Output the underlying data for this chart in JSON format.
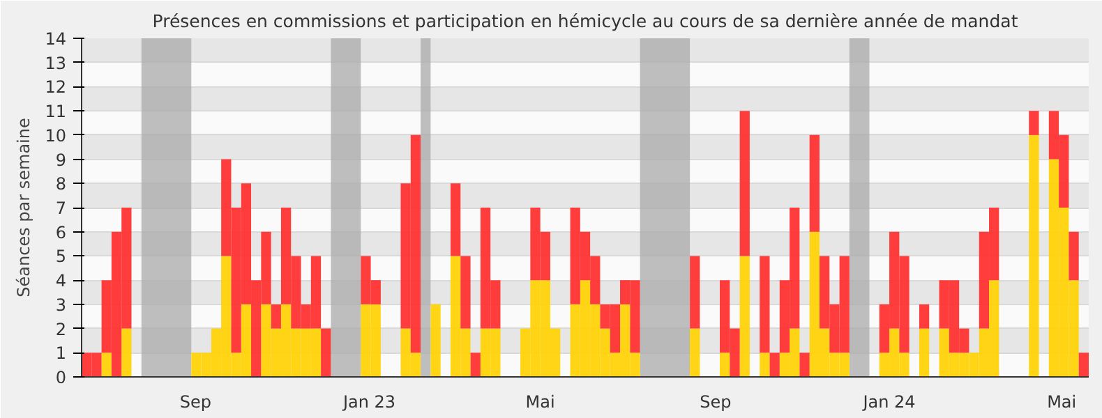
{
  "chart_data": {
    "type": "bar",
    "stacked": true,
    "title": "Présences en commissions et participation en hémicycle au cours de sa dernière année de mandat",
    "ylabel": "Séances par semaine",
    "x": [
      "2022-06-13",
      "2022-06-20",
      "2022-06-27",
      "2022-07-04",
      "2022-07-11",
      "2022-07-18",
      "2022-07-25",
      "2022-08-01",
      "2022-08-08",
      "2022-08-15",
      "2022-08-22",
      "2022-08-29",
      "2022-09-05",
      "2022-09-12",
      "2022-09-19",
      "2022-09-26",
      "2022-10-03",
      "2022-10-10",
      "2022-10-17",
      "2022-10-24",
      "2022-10-31",
      "2022-11-07",
      "2022-11-14",
      "2022-11-21",
      "2022-11-28",
      "2022-12-05",
      "2022-12-12",
      "2022-12-19",
      "2022-12-26",
      "2023-01-02",
      "2023-01-09",
      "2023-01-16",
      "2023-01-23",
      "2023-01-30",
      "2023-02-06",
      "2023-02-13",
      "2023-02-20",
      "2023-02-27",
      "2023-03-06",
      "2023-03-13",
      "2023-03-20",
      "2023-03-27",
      "2023-04-03",
      "2023-04-10",
      "2023-04-17",
      "2023-04-24",
      "2023-05-01",
      "2023-05-08",
      "2023-05-15",
      "2023-05-22",
      "2023-05-29",
      "2023-06-05",
      "2023-06-12",
      "2023-06-19",
      "2023-06-26",
      "2023-07-03",
      "2023-07-10",
      "2023-07-17",
      "2023-07-24",
      "2023-07-31",
      "2023-08-07",
      "2023-08-14",
      "2023-08-21",
      "2023-08-28",
      "2023-09-04",
      "2023-09-11",
      "2023-09-18",
      "2023-09-25",
      "2023-10-02",
      "2023-10-09",
      "2023-10-16",
      "2023-10-23",
      "2023-10-30",
      "2023-11-06",
      "2023-11-13",
      "2023-11-20",
      "2023-11-27",
      "2023-12-04",
      "2023-12-11",
      "2023-12-18",
      "2023-12-25",
      "2024-01-01",
      "2024-01-08",
      "2024-01-15",
      "2024-01-22",
      "2024-01-29",
      "2024-02-05",
      "2024-02-12",
      "2024-02-19",
      "2024-02-26",
      "2024-03-04",
      "2024-03-11",
      "2024-03-18",
      "2024-03-25",
      "2024-04-01",
      "2024-04-08",
      "2024-04-15",
      "2024-04-22",
      "2024-04-29",
      "2024-05-06",
      "2024-05-13"
    ],
    "series": [
      {
        "color": "#ffd30a",
        "values": [
          0,
          0,
          1,
          0,
          2,
          0,
          0,
          0,
          0,
          0,
          0,
          1,
          1,
          2,
          5,
          1,
          3,
          0,
          3,
          2,
          3,
          2,
          2,
          2,
          0,
          0,
          0,
          0,
          3,
          3,
          0,
          0,
          2,
          1,
          0,
          3,
          0,
          5,
          2,
          0,
          2,
          2,
          0,
          0,
          2,
          4,
          4,
          2,
          0,
          3,
          4,
          3,
          2,
          1,
          3,
          1,
          0,
          0,
          0,
          0,
          0,
          2,
          0,
          0,
          1,
          0,
          5,
          0,
          1,
          0,
          1,
          2,
          0,
          6,
          2,
          1,
          1,
          0,
          0,
          0,
          1,
          2,
          1,
          0,
          2,
          0,
          2,
          1,
          1,
          1,
          2,
          4,
          0,
          0,
          0,
          10,
          0,
          9,
          7,
          4,
          0
        ]
      },
      {
        "color": "#ff3333",
        "values": [
          1,
          1,
          3,
          6,
          5,
          0,
          0,
          0,
          0,
          0,
          0,
          0,
          0,
          0,
          4,
          6,
          5,
          4,
          3,
          1,
          4,
          3,
          1,
          3,
          2,
          0,
          0,
          0,
          2,
          1,
          0,
          0,
          6,
          9,
          0,
          0,
          0,
          3,
          3,
          1,
          5,
          2,
          0,
          0,
          0,
          3,
          2,
          0,
          0,
          4,
          2,
          2,
          1,
          2,
          1,
          3,
          0,
          0,
          0,
          0,
          0,
          3,
          0,
          0,
          3,
          2,
          6,
          0,
          4,
          1,
          3,
          5,
          1,
          4,
          3,
          2,
          4,
          0,
          0,
          0,
          2,
          4,
          4,
          0,
          1,
          0,
          2,
          3,
          1,
          0,
          4,
          3,
          0,
          0,
          0,
          1,
          0,
          2,
          3,
          2,
          1
        ]
      }
    ],
    "xlim": [
      "2022-06-13",
      "2024-05-20"
    ],
    "xticks": [
      {
        "value": "2022-09-01",
        "label": "Sep"
      },
      {
        "value": "2023-01-01",
        "label": "Jan 23"
      },
      {
        "value": "2023-05-01",
        "label": "Mai"
      },
      {
        "value": "2023-09-01",
        "label": "Sep"
      },
      {
        "value": "2024-01-01",
        "label": "Jan 24"
      },
      {
        "value": "2024-05-01",
        "label": "Mai"
      }
    ],
    "ylim": [
      0,
      14
    ],
    "yticks": [
      0,
      1,
      2,
      3,
      4,
      5,
      6,
      7,
      8,
      9,
      10,
      11,
      12,
      13,
      14
    ],
    "bands": [
      {
        "axis": "x",
        "from": "2022-07-25",
        "to": "2022-08-29",
        "color": "#aaaaaa"
      },
      {
        "axis": "x",
        "from": "2022-12-05",
        "to": "2022-12-26",
        "color": "#aaaaaa"
      },
      {
        "axis": "x",
        "from": "2023-02-06",
        "to": "2023-02-13",
        "color": "#aaaaaa"
      },
      {
        "axis": "x",
        "from": "2023-07-10",
        "to": "2023-08-14",
        "color": "#aaaaaa"
      },
      {
        "axis": "x",
        "from": "2023-12-04",
        "to": "2023-12-18",
        "color": "#aaaaaa"
      }
    ],
    "grid": "y"
  }
}
